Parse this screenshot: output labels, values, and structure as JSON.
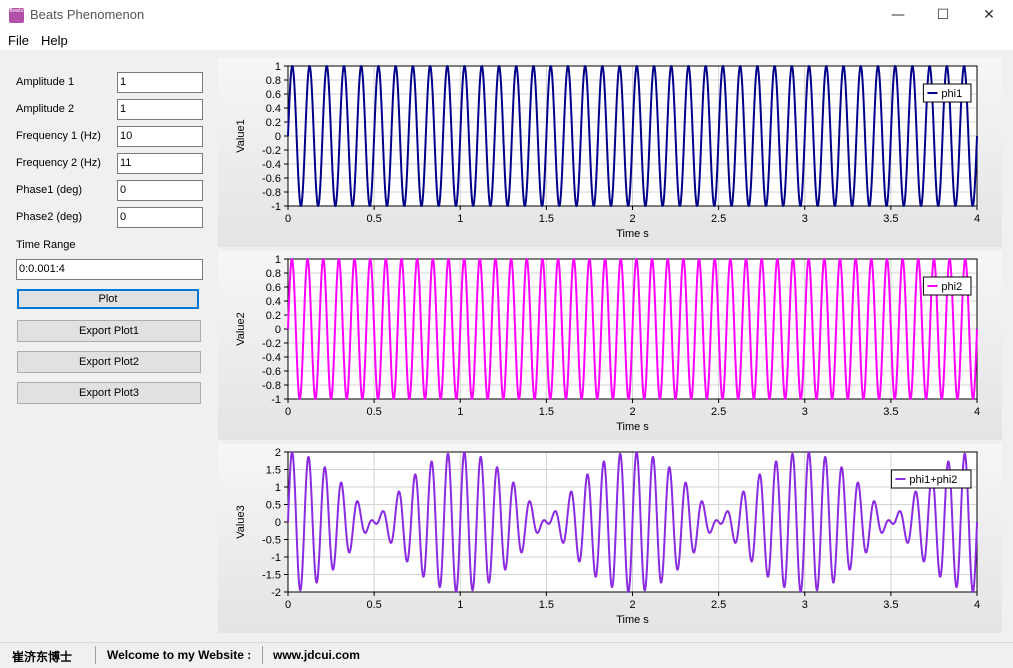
{
  "window": {
    "title": "Beats Phenomenon",
    "icon_text": "Beats",
    "minimize_glyph": "—",
    "maximize_glyph": "☐",
    "close_glyph": "✕"
  },
  "menu": {
    "items": [
      "File",
      "Help"
    ]
  },
  "form": {
    "fields": [
      {
        "label": "Amplitude 1",
        "value": "1"
      },
      {
        "label": "Amplitude 2",
        "value": "1"
      },
      {
        "label": "Frequency 1 (Hz)",
        "value": "10"
      },
      {
        "label": "Frequency 2 (Hz)",
        "value": "11"
      },
      {
        "label": "Phase1 (deg)",
        "value": "0"
      },
      {
        "label": "Phase2 (deg)",
        "value": "0"
      }
    ],
    "time_range_label": "Time Range",
    "time_range_value": "0:0.001:4",
    "buttons": [
      "Plot",
      "Export  Plot1",
      "Export  Plot2",
      "Export  Plot3"
    ]
  },
  "statusbar": {
    "author": "崔济东博士",
    "welcome": "Welcome to my Website :",
    "url": "www.jdcui.com"
  },
  "chart_data": [
    {
      "type": "line",
      "xlabel": "Time s",
      "ylabel": "Value1",
      "xlim": [
        0,
        4
      ],
      "ylim": [
        -1,
        1
      ],
      "xticks": [
        "0",
        "0.5",
        "1",
        "1.5",
        "2",
        "2.5",
        "3",
        "3.5",
        "4"
      ],
      "yticks": [
        "1",
        "0.8",
        "0.6",
        "0.4",
        "0.2",
        "0",
        "-0.2",
        "-0.4",
        "-0.6",
        "-0.8",
        "-1"
      ],
      "grid": true,
      "legend_position": "top-right",
      "series": [
        {
          "name": "phi1",
          "color": "#00008b",
          "amplitudes": [
            1
          ],
          "frequencies_hz": [
            10
          ],
          "phases_deg": [
            0
          ],
          "x_range": "0:0.001:4"
        }
      ]
    },
    {
      "type": "line",
      "xlabel": "Time s",
      "ylabel": "Value2",
      "xlim": [
        0,
        4
      ],
      "ylim": [
        -1,
        1
      ],
      "xticks": [
        "0",
        "0.5",
        "1",
        "1.5",
        "2",
        "2.5",
        "3",
        "3.5",
        "4"
      ],
      "yticks": [
        "1",
        "0.8",
        "0.6",
        "0.4",
        "0.2",
        "0",
        "-0.2",
        "-0.4",
        "-0.6",
        "-0.8",
        "-1"
      ],
      "grid": true,
      "legend_position": "top-right",
      "series": [
        {
          "name": "phi2",
          "color": "#ff00ff",
          "amplitudes": [
            1
          ],
          "frequencies_hz": [
            11
          ],
          "phases_deg": [
            0
          ],
          "x_range": "0:0.001:4"
        }
      ]
    },
    {
      "type": "line",
      "xlabel": "Time s",
      "ylabel": "Value3",
      "xlim": [
        0,
        4
      ],
      "ylim": [
        -2,
        2
      ],
      "xticks": [
        "0",
        "0.5",
        "1",
        "1.5",
        "2",
        "2.5",
        "3",
        "3.5",
        "4"
      ],
      "yticks": [
        "2",
        "1.5",
        "1",
        "0.5",
        "0",
        "-0.5",
        "-1",
        "-1.5",
        "-2"
      ],
      "grid": true,
      "legend_position": "top-right",
      "series": [
        {
          "name": "phi1+phi2",
          "color": "#8a2be2",
          "amplitudes": [
            1,
            1
          ],
          "frequencies_hz": [
            10,
            11
          ],
          "phases_deg": [
            0,
            0
          ],
          "x_range": "0:0.001:4"
        }
      ]
    }
  ]
}
